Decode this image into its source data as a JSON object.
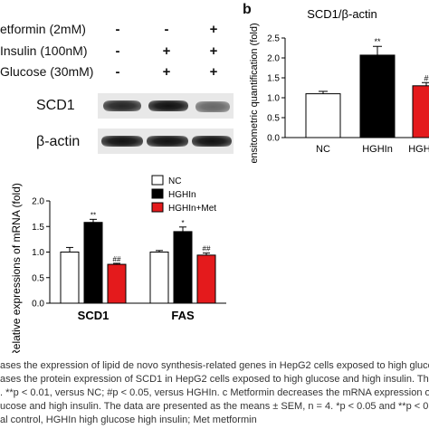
{
  "panel_a": {
    "conditions": [
      {
        "label": "etformin (2mM)",
        "signs": [
          "-",
          "-",
          "+"
        ]
      },
      {
        "label": "Insulin (100nM)",
        "signs": [
          "-",
          "+",
          "+"
        ]
      },
      {
        "label": "Glucose (30mM)",
        "signs": [
          "-",
          "+",
          "+"
        ]
      }
    ],
    "blot_labels": [
      "SCD1",
      "β-actin"
    ],
    "scd1_band_intensity": [
      0.9,
      1.0,
      0.6
    ],
    "actin_band_intensity": [
      1.0,
      1.0,
      1.0
    ]
  },
  "panel_b": {
    "letter": "b"
  },
  "caption_lines": [
    "ases the expression of lipid de novo synthesis-related genes in HepG2 cells exposed to high glucose",
    "ases the protein expression of SCD1 in HepG2 cells exposed to high glucose and high insulin. The",
    ". **p < 0.01, versus NC; #p < 0.05, versus HGHIn. c Metformin decreases the mRNA expression of F",
    "ucose and high insulin. The data are presented as the means ± SEM, n = 4. *p < 0.05 and **p < 0.",
    "al control, HGHIn high glucose high insulin; Met metformin"
  ],
  "chart_data": [
    {
      "type": "bar",
      "title": "SCD1/β-actin",
      "categories": [
        "NC",
        "HGHIn",
        "HGHIn"
      ],
      "series": [
        {
          "values": [
            1.1,
            2.07,
            1.3
          ],
          "errors": [
            0.06,
            0.22,
            0.08
          ]
        }
      ],
      "bar_colors": [
        "#ffffff",
        "#000000",
        "#e41a1c"
      ],
      "significance": [
        "",
        "**",
        "#"
      ],
      "ylabel": "Densitometric quantification (fold)",
      "ylim": [
        0,
        2.5
      ],
      "yticks": [
        "0.0",
        "0.5",
        "1.0",
        "1.5",
        "2.0",
        "2.5"
      ],
      "grid": false
    },
    {
      "type": "bar",
      "title": "",
      "categories": [
        "SCD1",
        "FAS"
      ],
      "series": [
        {
          "name": "NC",
          "color": "#ffffff",
          "values": [
            1.0,
            1.0
          ],
          "errors": [
            0.09,
            0.03
          ],
          "significance": [
            "",
            ""
          ]
        },
        {
          "name": "HGHIn",
          "color": "#000000",
          "values": [
            1.58,
            1.4
          ],
          "errors": [
            0.06,
            0.09
          ],
          "significance": [
            "**",
            "*"
          ]
        },
        {
          "name": "HGHIn+Met",
          "color": "#e41a1c",
          "values": [
            0.76,
            0.94
          ],
          "errors": [
            0.02,
            0.04
          ],
          "significance": [
            "##",
            "##"
          ]
        }
      ],
      "ylabel": "Relative expressions of mRNA (fold)",
      "ylim": [
        0,
        2.0
      ],
      "yticks": [
        "0.0",
        "0.5",
        "1.0",
        "1.5",
        "2.0"
      ],
      "legend_position": "top-left",
      "grid": false
    }
  ]
}
